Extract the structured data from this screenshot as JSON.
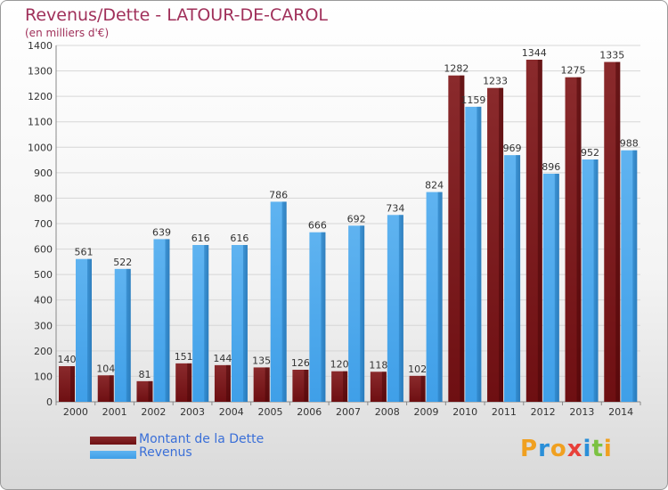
{
  "header": {
    "title": "Revenus/Dette - LATOUR-DE-CAROL",
    "subtitle": "(en milliers d'€)"
  },
  "legend": {
    "debt_label": "Montant de la Dette",
    "revenue_label": "Revenus"
  },
  "logo": {
    "text": "Proxiti"
  },
  "colors": {
    "debt": "#6e0f12",
    "revenue": "#3f9fe8",
    "title": "#a0305a",
    "legend_text": "#3a6fd8"
  },
  "chart_data": {
    "type": "bar",
    "title": "Revenus/Dette - LATOUR-DE-CAROL",
    "subtitle": "(en milliers d'€)",
    "xlabel": "",
    "ylabel": "",
    "categories": [
      "2000",
      "2001",
      "2002",
      "2003",
      "2004",
      "2005",
      "2006",
      "2007",
      "2008",
      "2009",
      "2010",
      "2011",
      "2012",
      "2013",
      "2014"
    ],
    "series": [
      {
        "name": "Montant de la Dette",
        "values": [
          140,
          104,
          81,
          151,
          144,
          135,
          126,
          120,
          118,
          102,
          1282,
          1233,
          1344,
          1275,
          1335
        ]
      },
      {
        "name": "Revenus",
        "values": [
          561,
          522,
          639,
          616,
          616,
          786,
          666,
          692,
          734,
          824,
          1159,
          969,
          896,
          952,
          988
        ]
      }
    ],
    "ylim": [
      0,
      1400
    ],
    "yticks": [
      0,
      100,
      200,
      300,
      400,
      500,
      600,
      700,
      800,
      900,
      1000,
      1100,
      1200,
      1300,
      1400
    ],
    "grid": true,
    "legend_position": "bottom-left"
  }
}
